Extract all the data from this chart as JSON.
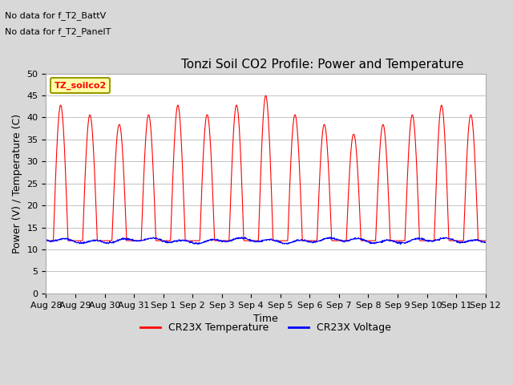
{
  "title": "Tonzi Soil CO2 Profile: Power and Temperature",
  "subtitle_lines": [
    "No data for f_T2_BattV",
    "No data for f_T2_PanelT"
  ],
  "ylabel": "Power (V) / Temperature (C)",
  "xlabel": "Time",
  "legend_label1": "CR23X Temperature",
  "legend_label2": "CR23X Voltage",
  "legend_box_label": "TZ_soilco2",
  "ylim": [
    0,
    50
  ],
  "yticks": [
    0,
    5,
    10,
    15,
    20,
    25,
    30,
    35,
    40,
    45,
    50
  ],
  "color_temp": "#ff0000",
  "color_volt": "#0000ff",
  "bg_color": "#d3d3d3",
  "plot_bg": "#ffffff",
  "x_tick_labels": [
    "Aug 28",
    "Aug 29",
    "Aug 30",
    "Aug 31",
    "Sep 1",
    "Sep 2",
    "Sep 3",
    "Sep 4",
    "Sep 5",
    "Sep 6",
    "Sep 7",
    "Sep 8",
    "Sep 9",
    "Sep 10",
    "Sep 11",
    "Sep 12"
  ],
  "n_days": 15,
  "temp_base": 12,
  "temp_amplitude": 16,
  "volt_base": 12,
  "volt_amplitude": 1.2
}
